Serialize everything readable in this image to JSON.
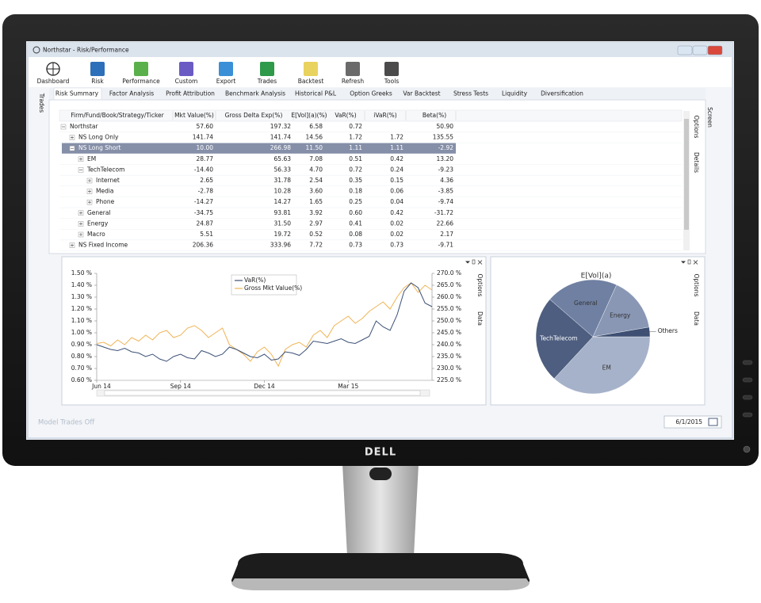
{
  "window": {
    "title": "Northstar - Risk/Performance"
  },
  "toolbar": [
    "Dashboard",
    "Risk",
    "Performance",
    "Custom",
    "Export",
    "Trades",
    "Backtest",
    "Refresh",
    "Tools"
  ],
  "side_tab": "Trades",
  "tabs": [
    "Risk Summary",
    "Factor Analysis",
    "Profit Attribution",
    "Benchmark Analysis",
    "Historical P&L",
    "Option Greeks",
    "Var Backtest",
    "Stress Tests",
    "Liquidity",
    "Diversification"
  ],
  "right_tabs": [
    "Options",
    "Details"
  ],
  "screen_tab": "Screen",
  "table": {
    "columns": [
      "Firm/Fund/Book/Strategy/Ticker",
      "Mkt Value(%)",
      "Gross Delta Exp(%)",
      "E[Vol](a)(%)",
      "VaR(%)",
      "iVaR(%)",
      "Beta(%)"
    ],
    "rows": [
      {
        "name": "Northstar",
        "values": [
          "57.60",
          "197.32",
          "6.58",
          "0.72",
          null,
          "50.90"
        ]
      },
      {
        "name": "NS Long Only",
        "values": [
          "141.74",
          "141.74",
          "14.56",
          "1.72",
          "1.72",
          "135.55"
        ]
      },
      {
        "name": "NS Long Short",
        "values": [
          "10.00",
          "266.98",
          "11.50",
          "1.11",
          "1.11",
          "-2.92"
        ]
      },
      {
        "name": "EM",
        "values": [
          "28.77",
          "65.63",
          "7.08",
          "0.51",
          "0.42",
          "13.20"
        ]
      },
      {
        "name": "TechTelecom",
        "values": [
          "-14.40",
          "56.33",
          "4.70",
          "0.72",
          "0.24",
          "-9.23"
        ]
      },
      {
        "name": "Internet",
        "values": [
          "2.65",
          "31.78",
          "2.54",
          "0.35",
          "0.15",
          "4.36"
        ]
      },
      {
        "name": "Media",
        "values": [
          "-2.78",
          "10.28",
          "3.60",
          "0.18",
          "0.06",
          "-3.85"
        ]
      },
      {
        "name": "Phone",
        "values": [
          "-14.27",
          "14.27",
          "1.65",
          "0.25",
          "0.04",
          "-9.74"
        ]
      },
      {
        "name": "General",
        "values": [
          "-34.75",
          "93.81",
          "3.92",
          "0.60",
          "0.42",
          "-31.72"
        ]
      },
      {
        "name": "Energy",
        "values": [
          "24.87",
          "31.50",
          "2.97",
          "0.41",
          "0.02",
          "22.66"
        ]
      },
      {
        "name": "Macro",
        "values": [
          "5.51",
          "19.72",
          "0.52",
          "0.08",
          "0.02",
          "2.17"
        ]
      },
      {
        "name": "NS Fixed Income",
        "values": [
          "206.36",
          "333.96",
          "7.72",
          "0.73",
          "0.73",
          "-9.71"
        ]
      }
    ]
  },
  "line_panel_tabs": [
    "Options",
    "Data"
  ],
  "pie_panel_tabs": [
    "Options",
    "Data"
  ],
  "status": "Model Trades Off",
  "date": "6/1/2015",
  "brand": "DELL",
  "chart_data": [
    {
      "type": "line",
      "categories": [
        "Jun 14",
        null,
        null,
        null,
        null,
        null,
        null,
        null,
        null,
        null,
        null,
        null,
        "Sep 14",
        null,
        null,
        null,
        null,
        null,
        null,
        null,
        null,
        null,
        null,
        null,
        "Dec 14",
        null,
        null,
        null,
        null,
        null,
        null,
        null,
        null,
        null,
        null,
        null,
        "Mar 15",
        null,
        null,
        null,
        null,
        null,
        null,
        null,
        null,
        null,
        null,
        null,
        null
      ],
      "series": [
        {
          "name": "VaR(%)",
          "color": "#3c5176",
          "values": [
            0.9,
            0.88,
            0.86,
            0.85,
            0.87,
            0.84,
            0.83,
            0.8,
            0.82,
            0.78,
            0.76,
            0.8,
            0.82,
            0.79,
            0.78,
            0.85,
            0.83,
            0.8,
            0.82,
            0.88,
            0.86,
            0.83,
            0.8,
            0.79,
            0.82,
            0.77,
            0.78,
            0.84,
            0.83,
            0.81,
            0.86,
            0.93,
            0.92,
            0.91,
            0.93,
            0.95,
            0.92,
            0.91,
            0.94,
            0.97,
            1.1,
            1.05,
            1.02,
            1.15,
            1.35,
            1.42,
            1.38,
            1.25,
            1.22
          ]
        },
        {
          "name": "Gross Mkt Value(%)",
          "color": "#f0b455",
          "axis": "y2",
          "values": [
            240.5,
            241,
            239.5,
            242,
            240,
            243,
            241.5,
            244,
            242,
            245,
            246,
            243,
            244,
            247,
            248,
            246,
            243,
            245,
            247,
            240,
            238,
            236,
            233,
            237,
            239,
            236,
            231,
            238,
            240,
            241,
            239,
            244,
            246,
            243,
            248,
            250,
            252,
            249,
            251,
            254,
            256,
            258,
            255,
            260,
            264,
            266,
            262,
            265,
            263
          ]
        }
      ],
      "ylim": [
        0.6,
        1.5
      ],
      "yticks": [
        {
          "value": 0.6,
          "label": "0.60 %"
        },
        {
          "value": 0.7,
          "label": "0.70 %"
        },
        {
          "value": 0.8,
          "label": "0.80 %"
        },
        {
          "value": 0.9,
          "label": "0.90 %"
        },
        {
          "value": 1.0,
          "label": "1.00 %"
        },
        {
          "value": 1.1,
          "label": "1.10 %"
        },
        {
          "value": 1.2,
          "label": "1.20 %"
        },
        {
          "value": 1.3,
          "label": "1.30 %"
        },
        {
          "value": 1.4,
          "label": "1.40 %"
        },
        {
          "value": 1.5,
          "label": "1.50 %"
        }
      ],
      "y2lim": [
        225,
        270
      ],
      "y2ticks": [
        {
          "value": 225,
          "label": "225.0 %"
        },
        {
          "value": 230,
          "label": "230.0 %"
        },
        {
          "value": 235,
          "label": "235.0 %"
        },
        {
          "value": 240,
          "label": "240.0 %"
        },
        {
          "value": 245,
          "label": "245.0 %"
        },
        {
          "value": 250,
          "label": "250.0 %"
        },
        {
          "value": 255,
          "label": "255.0 %"
        },
        {
          "value": 260,
          "label": "260.0 %"
        },
        {
          "value": 265,
          "label": "265.0 %"
        },
        {
          "value": 270,
          "label": "270.0 %"
        }
      ]
    },
    {
      "type": "pie",
      "title": "E[Vol](a)",
      "categories": [
        "EM",
        "TechTelecom",
        "General",
        "Energy",
        "Others"
      ],
      "values": [
        7.08,
        4.7,
        3.92,
        2.97,
        0.52
      ],
      "colors": [
        "#a6b2c9",
        "#4e5e80",
        "#6f80a2",
        "#8997b5",
        "#3e4f73"
      ]
    }
  ]
}
